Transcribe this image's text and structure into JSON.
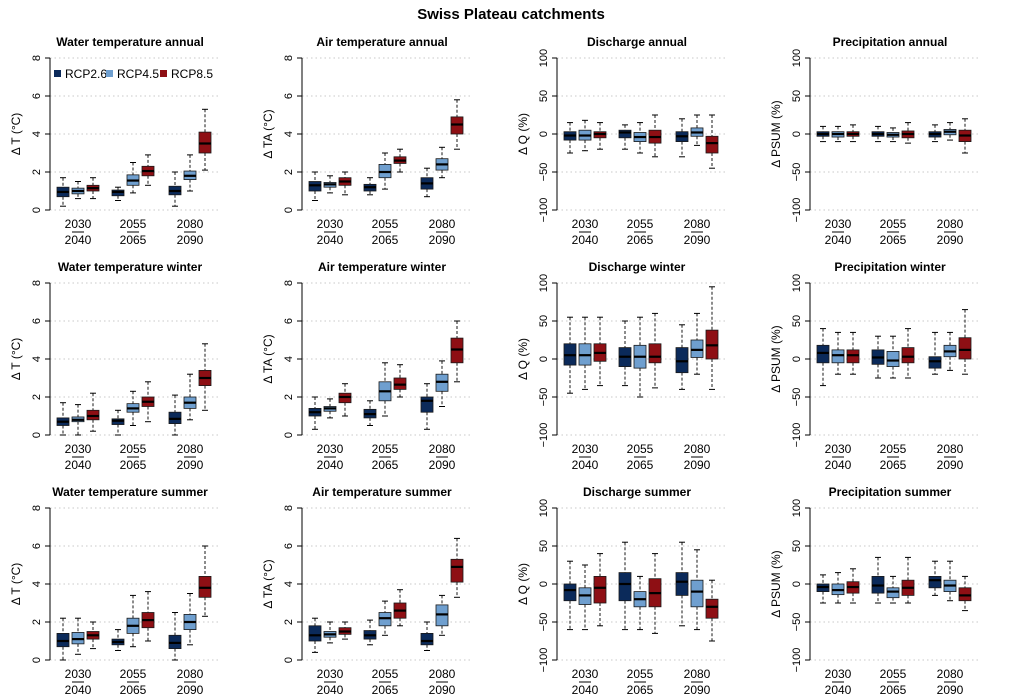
{
  "title": "Swiss Plateau catchments",
  "legend": [
    {
      "name": "RCP2.6",
      "color": "#0b2a5a"
    },
    {
      "name": "RCP4.5",
      "color": "#6f9fcf"
    },
    {
      "name": "RCP8.5",
      "color": "#8e0f14"
    }
  ],
  "periods": [
    {
      "top": "2030",
      "bottom": "2040"
    },
    {
      "top": "2055",
      "bottom": "2065"
    },
    {
      "top": "2080",
      "bottom": "2090"
    }
  ],
  "chart_data": [
    {
      "type": "box",
      "title": "Water temperature annual",
      "ylabel": "Δ T (°C)",
      "ylim": [
        0,
        8
      ],
      "yticks": [
        "0",
        "2",
        "4",
        "6",
        "8"
      ],
      "series": [
        {
          "name": "RCP2.6",
          "values": [
            [
              0.2,
              0.7,
              0.95,
              1.2,
              1.7
            ],
            [
              0.5,
              0.75,
              0.95,
              1.05,
              1.2
            ],
            [
              0.2,
              0.8,
              1.0,
              1.25,
              2.0
            ]
          ]
        },
        {
          "name": "RCP4.5",
          "values": [
            [
              0.6,
              0.85,
              1.0,
              1.15,
              1.5
            ],
            [
              0.9,
              1.3,
              1.55,
              1.85,
              2.5
            ],
            [
              1.0,
              1.6,
              1.8,
              2.05,
              2.9
            ]
          ]
        },
        {
          "name": "RCP8.5",
          "values": [
            [
              0.6,
              1.0,
              1.15,
              1.3,
              1.7
            ],
            [
              1.3,
              1.8,
              2.05,
              2.3,
              2.9
            ],
            [
              2.1,
              3.0,
              3.5,
              4.1,
              5.3
            ]
          ]
        }
      ]
    },
    {
      "type": "box",
      "title": "Air temperature annual",
      "ylabel": "Δ TA (°C)",
      "ylim": [
        0,
        8
      ],
      "yticks": [
        "0",
        "2",
        "4",
        "6",
        "8"
      ],
      "series": [
        {
          "name": "RCP2.6",
          "values": [
            [
              0.5,
              1.0,
              1.3,
              1.5,
              2.0
            ],
            [
              0.8,
              1.0,
              1.2,
              1.35,
              1.7
            ],
            [
              0.7,
              1.1,
              1.4,
              1.7,
              2.2
            ]
          ]
        },
        {
          "name": "RCP4.5",
          "values": [
            [
              0.9,
              1.2,
              1.35,
              1.45,
              1.8
            ],
            [
              1.1,
              1.7,
              2.0,
              2.4,
              3.0
            ],
            [
              1.7,
              2.1,
              2.4,
              2.7,
              3.3
            ]
          ]
        },
        {
          "name": "RCP8.5",
          "values": [
            [
              0.8,
              1.3,
              1.5,
              1.7,
              2.0
            ],
            [
              2.0,
              2.45,
              2.6,
              2.8,
              3.2
            ],
            [
              3.2,
              4.0,
              4.5,
              4.9,
              5.8
            ]
          ]
        }
      ]
    },
    {
      "type": "box",
      "title": "Discharge annual",
      "ylabel": "Δ Q (%)",
      "ylim": [
        -100,
        100
      ],
      "yticks": [
        "−100",
        "−50",
        "0",
        "50",
        "100"
      ],
      "series": [
        {
          "name": "RCP2.6",
          "values": [
            [
              -25,
              -8,
              -2,
              3,
              15
            ],
            [
              -20,
              -5,
              2,
              5,
              12
            ],
            [
              -30,
              -10,
              -3,
              3,
              20
            ]
          ]
        },
        {
          "name": "RCP4.5",
          "values": [
            [
              -22,
              -8,
              -2,
              5,
              18
            ],
            [
              -25,
              -10,
              -4,
              2,
              15
            ],
            [
              -15,
              -3,
              2,
              8,
              25
            ]
          ]
        },
        {
          "name": "RCP8.5",
          "values": [
            [
              -20,
              -5,
              0,
              3,
              15
            ],
            [
              -30,
              -12,
              -4,
              5,
              25
            ],
            [
              -45,
              -25,
              -12,
              -3,
              25
            ]
          ]
        }
      ]
    },
    {
      "type": "box",
      "title": "Precipitation annual",
      "ylabel": "Δ PSUM (%)",
      "ylim": [
        -100,
        100
      ],
      "yticks": [
        "−100",
        "−50",
        "0",
        "50",
        "100"
      ],
      "series": [
        {
          "name": "RCP2.6",
          "values": [
            [
              -10,
              -3,
              0,
              3,
              10
            ],
            [
              -10,
              -3,
              0,
              3,
              10
            ],
            [
              -10,
              -4,
              0,
              3,
              12
            ]
          ]
        },
        {
          "name": "RCP4.5",
          "values": [
            [
              -10,
              -4,
              0,
              3,
              10
            ],
            [
              -10,
              -4,
              -1,
              2,
              8
            ],
            [
              -8,
              -1,
              3,
              6,
              15
            ]
          ]
        },
        {
          "name": "RCP8.5",
          "values": [
            [
              -10,
              -3,
              0,
              3,
              12
            ],
            [
              -12,
              -5,
              0,
              4,
              15
            ],
            [
              -25,
              -10,
              -2,
              5,
              20
            ]
          ]
        }
      ]
    },
    {
      "type": "box",
      "title": "Water temperature winter",
      "ylabel": "Δ T (°C)",
      "ylim": [
        0,
        8
      ],
      "yticks": [
        "0",
        "2",
        "4",
        "6",
        "8"
      ],
      "series": [
        {
          "name": "RCP2.6",
          "values": [
            [
              0.0,
              0.5,
              0.7,
              0.9,
              1.7
            ],
            [
              0.0,
              0.55,
              0.75,
              0.85,
              1.3
            ],
            [
              0.0,
              0.6,
              0.85,
              1.2,
              2.1
            ]
          ]
        },
        {
          "name": "RCP4.5",
          "values": [
            [
              0.0,
              0.7,
              0.8,
              0.95,
              1.6
            ],
            [
              0.5,
              1.2,
              1.4,
              1.65,
              2.3
            ],
            [
              0.8,
              1.4,
              1.7,
              2.0,
              3.2
            ]
          ]
        },
        {
          "name": "RCP8.5",
          "values": [
            [
              0.2,
              0.8,
              1.0,
              1.3,
              2.2
            ],
            [
              0.7,
              1.5,
              1.75,
              2.0,
              2.8
            ],
            [
              1.3,
              2.6,
              3.0,
              3.4,
              4.8
            ]
          ]
        }
      ]
    },
    {
      "type": "box",
      "title": "Air temperature winter",
      "ylabel": "Δ TA (°C)",
      "ylim": [
        0,
        8
      ],
      "yticks": [
        "0",
        "2",
        "4",
        "6",
        "8"
      ],
      "series": [
        {
          "name": "RCP2.6",
          "values": [
            [
              0.3,
              1.0,
              1.2,
              1.4,
              2.0
            ],
            [
              0.5,
              0.9,
              1.1,
              1.35,
              1.8
            ],
            [
              0.3,
              1.2,
              1.8,
              2.0,
              2.7
            ]
          ]
        },
        {
          "name": "RCP4.5",
          "values": [
            [
              0.9,
              1.25,
              1.4,
              1.5,
              1.9
            ],
            [
              1.0,
              1.8,
              2.3,
              2.8,
              3.8
            ],
            [
              1.5,
              2.3,
              2.8,
              3.2,
              3.9
            ]
          ]
        },
        {
          "name": "RCP8.5",
          "values": [
            [
              1.0,
              1.7,
              2.0,
              2.2,
              2.7
            ],
            [
              2.0,
              2.4,
              2.65,
              3.0,
              3.7
            ],
            [
              2.8,
              3.8,
              4.5,
              5.1,
              6.0
            ]
          ]
        }
      ]
    },
    {
      "type": "box",
      "title": "Discharge winter",
      "ylabel": "Δ Q (%)",
      "ylim": [
        -100,
        100
      ],
      "yticks": [
        "−100",
        "−50",
        "0",
        "50",
        "100"
      ],
      "series": [
        {
          "name": "RCP2.6",
          "values": [
            [
              -45,
              -8,
              5,
              20,
              55
            ],
            [
              -35,
              -10,
              3,
              15,
              50
            ],
            [
              -40,
              -18,
              -3,
              15,
              45
            ]
          ]
        },
        {
          "name": "RCP4.5",
          "values": [
            [
              -40,
              -8,
              5,
              20,
              55
            ],
            [
              -50,
              -12,
              3,
              18,
              55
            ],
            [
              -20,
              2,
              12,
              25,
              60
            ]
          ]
        },
        {
          "name": "RCP8.5",
          "values": [
            [
              -35,
              -3,
              8,
              20,
              55
            ],
            [
              -38,
              -5,
              3,
              20,
              60
            ],
            [
              -40,
              0,
              18,
              38,
              95
            ]
          ]
        }
      ]
    },
    {
      "type": "box",
      "title": "Precipitation winter",
      "ylabel": "Δ PSUM (%)",
      "ylim": [
        -100,
        100
      ],
      "yticks": [
        "−100",
        "−50",
        "0",
        "50",
        "100"
      ],
      "series": [
        {
          "name": "RCP2.6",
          "values": [
            [
              -35,
              -5,
              8,
              18,
              40
            ],
            [
              -25,
              -7,
              2,
              12,
              30
            ],
            [
              -20,
              -12,
              -3,
              3,
              35
            ]
          ]
        },
        {
          "name": "RCP4.5",
          "values": [
            [
              -20,
              -5,
              5,
              12,
              35
            ],
            [
              -25,
              -10,
              -2,
              10,
              30
            ],
            [
              -15,
              3,
              10,
              18,
              35
            ]
          ]
        },
        {
          "name": "RCP8.5",
          "values": [
            [
              -20,
              -5,
              5,
              12,
              35
            ],
            [
              -25,
              -5,
              3,
              15,
              40
            ],
            [
              -20,
              0,
              12,
              28,
              65
            ]
          ]
        }
      ]
    },
    {
      "type": "box",
      "title": "Water temperature summer",
      "ylabel": "Δ T (°C)",
      "ylim": [
        0,
        8
      ],
      "yticks": [
        "0",
        "2",
        "4",
        "6",
        "8"
      ],
      "series": [
        {
          "name": "RCP2.6",
          "values": [
            [
              0.0,
              0.7,
              1.0,
              1.4,
              2.2
            ],
            [
              0.5,
              0.8,
              0.95,
              1.1,
              1.6
            ],
            [
              0.0,
              0.6,
              0.9,
              1.3,
              2.5
            ]
          ]
        },
        {
          "name": "RCP4.5",
          "values": [
            [
              0.3,
              0.85,
              1.1,
              1.45,
              2.2
            ],
            [
              0.7,
              1.4,
              1.8,
              2.2,
              3.4
            ],
            [
              0.8,
              1.6,
              2.0,
              2.4,
              3.5
            ]
          ]
        },
        {
          "name": "RCP8.5",
          "values": [
            [
              0.6,
              1.1,
              1.3,
              1.5,
              2.0
            ],
            [
              1.0,
              1.7,
              2.1,
              2.5,
              3.6
            ],
            [
              2.3,
              3.3,
              3.8,
              4.4,
              6.0
            ]
          ]
        }
      ]
    },
    {
      "type": "box",
      "title": "Air temperature summer",
      "ylabel": "Δ TA (°C)",
      "ylim": [
        0,
        8
      ],
      "yticks": [
        "0",
        "2",
        "4",
        "6",
        "8"
      ],
      "series": [
        {
          "name": "RCP2.6",
          "values": [
            [
              0.4,
              1.0,
              1.3,
              1.8,
              2.2
            ],
            [
              0.8,
              1.1,
              1.3,
              1.55,
              2.1
            ],
            [
              0.5,
              0.8,
              1.0,
              1.4,
              2.0
            ]
          ]
        },
        {
          "name": "RCP4.5",
          "values": [
            [
              0.9,
              1.2,
              1.35,
              1.5,
              2.0
            ],
            [
              1.3,
              1.8,
              2.2,
              2.5,
              3.1
            ],
            [
              1.3,
              1.8,
              2.4,
              2.9,
              3.4
            ]
          ]
        },
        {
          "name": "RCP8.5",
          "values": [
            [
              1.1,
              1.35,
              1.5,
              1.7,
              2.0
            ],
            [
              1.8,
              2.2,
              2.6,
              3.0,
              3.7
            ],
            [
              3.3,
              4.1,
              4.9,
              5.3,
              6.4
            ]
          ]
        }
      ]
    },
    {
      "type": "box",
      "title": "Discharge summer",
      "ylabel": "Δ Q (%)",
      "ylim": [
        -100,
        100
      ],
      "yticks": [
        "−100",
        "−50",
        "0",
        "50",
        "100"
      ],
      "series": [
        {
          "name": "RCP2.6",
          "values": [
            [
              -60,
              -22,
              -8,
              0,
              30
            ],
            [
              -60,
              -22,
              0,
              15,
              55
            ],
            [
              -55,
              -15,
              3,
              15,
              55
            ]
          ]
        },
        {
          "name": "RCP4.5",
          "values": [
            [
              -60,
              -27,
              -15,
              -5,
              25
            ],
            [
              -60,
              -30,
              -20,
              -10,
              10
            ],
            [
              -60,
              -30,
              -10,
              5,
              45
            ]
          ]
        },
        {
          "name": "RCP8.5",
          "values": [
            [
              -55,
              -25,
              -5,
              10,
              40
            ],
            [
              -65,
              -30,
              -12,
              7,
              40
            ],
            [
              -75,
              -45,
              -30,
              -20,
              5
            ]
          ]
        }
      ]
    },
    {
      "type": "box",
      "title": "Precipitation summer",
      "ylabel": "Δ PSUM (%)",
      "ylim": [
        -100,
        100
      ],
      "yticks": [
        "−100",
        "−50",
        "0",
        "50",
        "100"
      ],
      "series": [
        {
          "name": "RCP2.6",
          "values": [
            [
              -25,
              -10,
              -4,
              0,
              12
            ],
            [
              -25,
              -12,
              -2,
              10,
              35
            ],
            [
              -15,
              -5,
              5,
              10,
              30
            ]
          ]
        },
        {
          "name": "RCP4.5",
          "values": [
            [
              -25,
              -14,
              -8,
              0,
              15
            ],
            [
              -25,
              -18,
              -10,
              -5,
              10
            ],
            [
              -22,
              -10,
              -2,
              5,
              30
            ]
          ]
        },
        {
          "name": "RCP8.5",
          "values": [
            [
              -25,
              -12,
              -4,
              3,
              20
            ],
            [
              -25,
              -15,
              -5,
              5,
              35
            ],
            [
              -35,
              -22,
              -15,
              -5,
              10
            ]
          ]
        }
      ]
    }
  ]
}
